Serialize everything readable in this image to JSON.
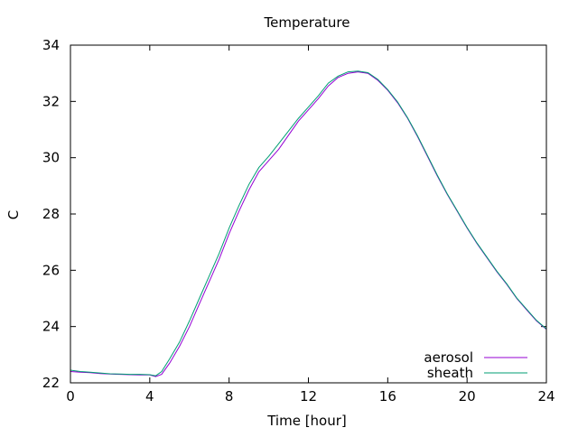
{
  "chart_data": {
    "type": "line",
    "title": "Temperature",
    "xlabel": "Time [hour]",
    "ylabel": "C",
    "xlim": [
      0,
      24
    ],
    "ylim": [
      22,
      34
    ],
    "xticks": [
      0,
      4,
      8,
      12,
      16,
      20,
      24
    ],
    "yticks": [
      22,
      24,
      26,
      28,
      30,
      32,
      34
    ],
    "grid": false,
    "legend_position": "bottom-right",
    "series": [
      {
        "name": "aerosol",
        "color": "#9400d3",
        "x": [
          0,
          0.5,
          1,
          1.5,
          2,
          2.5,
          3,
          3.5,
          4,
          4.3,
          4.6,
          5,
          5.5,
          6,
          6.5,
          7,
          7.5,
          8,
          8.5,
          9,
          9.5,
          10,
          10.5,
          11,
          11.5,
          12,
          12.5,
          13,
          13.5,
          14,
          14.5,
          15,
          15.5,
          16,
          16.5,
          17,
          17.5,
          18,
          18.5,
          19,
          19.5,
          20,
          20.5,
          21,
          21.5,
          22,
          22.5,
          23,
          23.5,
          24
        ],
        "y": [
          22.4,
          22.38,
          22.36,
          22.33,
          22.31,
          22.3,
          22.29,
          22.28,
          22.28,
          22.22,
          22.3,
          22.7,
          23.3,
          24.0,
          24.8,
          25.6,
          26.4,
          27.3,
          28.1,
          28.85,
          29.5,
          29.9,
          30.3,
          30.8,
          31.3,
          31.7,
          32.1,
          32.55,
          32.85,
          33.0,
          33.05,
          33.0,
          32.75,
          32.4,
          31.95,
          31.4,
          30.75,
          30.05,
          29.35,
          28.7,
          28.1,
          27.5,
          26.95,
          26.45,
          25.95,
          25.5,
          25.0,
          24.6,
          24.2,
          23.9
        ]
      },
      {
        "name": "sheath",
        "color": "#009e73",
        "x": [
          0,
          0.5,
          1,
          1.5,
          2,
          2.5,
          3,
          3.5,
          4,
          4.3,
          4.6,
          5,
          5.5,
          6,
          6.5,
          7,
          7.5,
          8,
          8.5,
          9,
          9.5,
          10,
          10.5,
          11,
          11.5,
          12,
          12.5,
          13,
          13.5,
          14,
          14.5,
          15,
          15.5,
          16,
          16.5,
          17,
          17.5,
          18,
          18.5,
          19,
          19.5,
          20,
          20.5,
          21,
          21.5,
          22,
          22.5,
          23,
          23.5,
          24
        ],
        "y": [
          22.45,
          22.4,
          22.38,
          22.35,
          22.32,
          22.31,
          22.3,
          22.3,
          22.29,
          22.25,
          22.4,
          22.85,
          23.45,
          24.2,
          25.0,
          25.8,
          26.6,
          27.5,
          28.3,
          29.05,
          29.65,
          30.05,
          30.5,
          30.95,
          31.4,
          31.8,
          32.2,
          32.65,
          32.9,
          33.05,
          33.08,
          33.02,
          32.78,
          32.42,
          31.98,
          31.42,
          30.78,
          30.08,
          29.38,
          28.72,
          28.12,
          27.52,
          26.97,
          26.47,
          25.97,
          25.52,
          25.02,
          24.62,
          24.22,
          23.92
        ]
      }
    ]
  }
}
